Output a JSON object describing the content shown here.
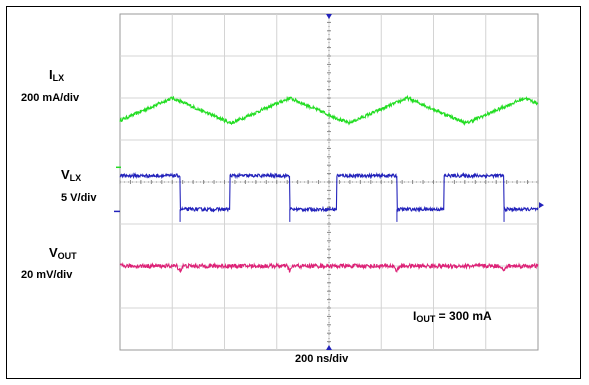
{
  "chart_data": {
    "type": "line",
    "title": "",
    "xlabel": "200 ns/div",
    "grid": true,
    "divisions": {
      "x": 8,
      "y": 8
    },
    "annotation": {
      "main": "I",
      "sub": "OUT",
      "rest": " = 300 mA"
    },
    "series": [
      {
        "name_main": "I",
        "name_sub": "LX",
        "scale": "200 mA/div",
        "color": "#22dd22",
        "shape": "triangle",
        "offset_div": 5.7,
        "pp_div": 0.6,
        "peaks_div": [
          1.0,
          3.25,
          5.5,
          7.75
        ],
        "noise_div": 0.04
      },
      {
        "name_main": "V",
        "name_sub": "LX",
        "scale": "5 V/div",
        "color": "#2222bb",
        "shape": "square",
        "offset_div": 3.75,
        "pp_div": 0.8,
        "high_intervals_div": [
          [
            0,
            1.15
          ],
          [
            2.1,
            3.25
          ],
          [
            4.15,
            5.3
          ],
          [
            6.2,
            7.35
          ]
        ],
        "noise_div": 0.04
      },
      {
        "name_main": "V",
        "name_sub": "OUT",
        "scale": "20 mV/div",
        "color": "#dd2277",
        "shape": "flat",
        "offset_div": 2.0,
        "pp_div": 0.0,
        "noise_div": 0.05
      }
    ]
  }
}
